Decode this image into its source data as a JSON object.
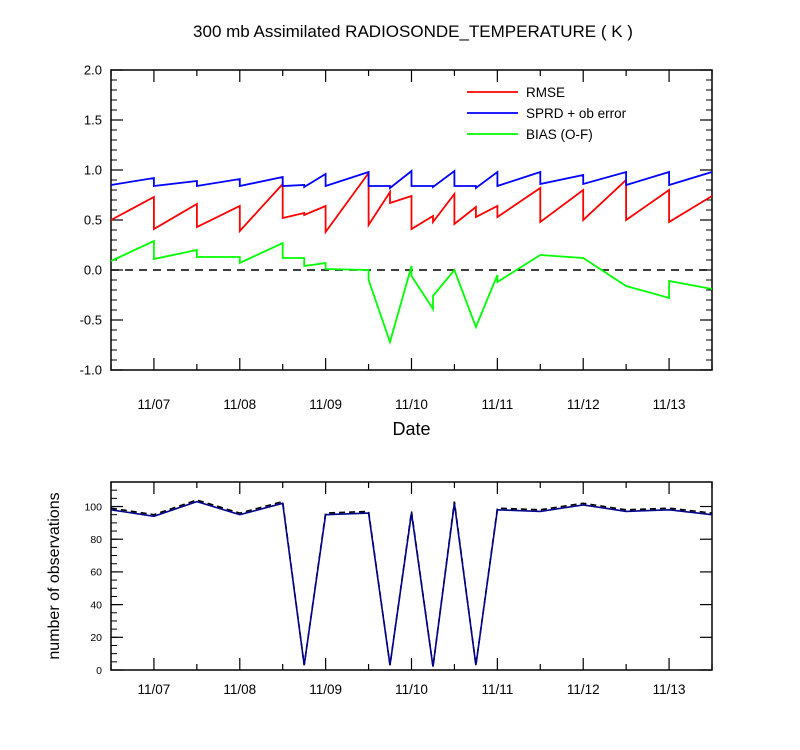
{
  "title": "300 mb Assimilated RADIOSONDE_TEMPERATURE ( K )",
  "chart_data": [
    {
      "type": "line",
      "xlabel": "Date",
      "ylabel": "",
      "ylim": [
        -1.0,
        2.0
      ],
      "xlim": [
        "11/06 12Z",
        "11/13 12Z"
      ],
      "yticks": [
        "-1.0",
        "-0.5",
        "0.0",
        "0.5",
        "1.0",
        "1.5",
        "2.0"
      ],
      "xticks": [
        "11/07",
        "11/08",
        "11/09",
        "11/10",
        "11/11",
        "11/12",
        "11/13"
      ],
      "zero_line": "dashed",
      "legend_position": "top-right",
      "series": [
        {
          "name": "RMSE",
          "color": "#ff0000",
          "points": [
            [
              "11/06 12Z",
              0.5
            ],
            [
              "11/07 00Z",
              0.73
            ],
            [
              "11/07 00Z",
              0.41
            ],
            [
              "11/07 12Z",
              0.66
            ],
            [
              "11/07 12Z",
              0.43
            ],
            [
              "11/08 00Z",
              0.64
            ],
            [
              "11/08 00Z",
              0.39
            ],
            [
              "11/08 12Z",
              0.86
            ],
            [
              "11/08 12Z",
              0.52
            ],
            [
              "11/08 18Z",
              0.57
            ],
            [
              "11/08 18Z",
              0.55
            ],
            [
              "11/09 00Z",
              0.64
            ],
            [
              "11/09 00Z",
              0.38
            ],
            [
              "11/09 12Z",
              0.97
            ],
            [
              "11/09 12Z",
              0.45
            ],
            [
              "11/09 18Z",
              0.78
            ],
            [
              "11/09 18Z",
              0.67
            ],
            [
              "11/10 00Z",
              0.74
            ],
            [
              "11/10 00Z",
              0.41
            ],
            [
              "11/10 06Z",
              0.54
            ],
            [
              "11/10 06Z",
              0.48
            ],
            [
              "11/10 12Z",
              0.76
            ],
            [
              "11/10 12Z",
              0.46
            ],
            [
              "11/10 18Z",
              0.63
            ],
            [
              "11/10 18Z",
              0.53
            ],
            [
              "11/11 00Z",
              0.64
            ],
            [
              "11/11 00Z",
              0.53
            ],
            [
              "11/11 12Z",
              0.82
            ],
            [
              "11/11 12Z",
              0.48
            ],
            [
              "11/12 00Z",
              0.8
            ],
            [
              "11/12 00Z",
              0.5
            ],
            [
              "11/12 12Z",
              0.9
            ],
            [
              "11/12 12Z",
              0.5
            ],
            [
              "11/13 00Z",
              0.8
            ],
            [
              "11/13 00Z",
              0.48
            ],
            [
              "11/13 12Z",
              0.74
            ]
          ]
        },
        {
          "name": "SPRD + ob error",
          "color": "#0000ff",
          "points": [
            [
              "11/06 12Z",
              0.85
            ],
            [
              "11/07 00Z",
              0.92
            ],
            [
              "11/07 00Z",
              0.84
            ],
            [
              "11/07 12Z",
              0.89
            ],
            [
              "11/07 12Z",
              0.84
            ],
            [
              "11/08 00Z",
              0.91
            ],
            [
              "11/08 00Z",
              0.84
            ],
            [
              "11/08 12Z",
              0.93
            ],
            [
              "11/08 12Z",
              0.84
            ],
            [
              "11/08 18Z",
              0.85
            ],
            [
              "11/08 18Z",
              0.83
            ],
            [
              "11/09 00Z",
              0.96
            ],
            [
              "11/09 00Z",
              0.84
            ],
            [
              "11/09 12Z",
              0.98
            ],
            [
              "11/09 12Z",
              0.84
            ],
            [
              "11/09 18Z",
              0.84
            ],
            [
              "11/09 18Z",
              0.82
            ],
            [
              "11/10 00Z",
              0.99
            ],
            [
              "11/10 00Z",
              0.84
            ],
            [
              "11/10 06Z",
              0.84
            ],
            [
              "11/10 06Z",
              0.83
            ],
            [
              "11/10 12Z",
              0.99
            ],
            [
              "11/10 12Z",
              0.84
            ],
            [
              "11/10 18Z",
              0.84
            ],
            [
              "11/10 18Z",
              0.82
            ],
            [
              "11/11 00Z",
              0.98
            ],
            [
              "11/11 00Z",
              0.84
            ],
            [
              "11/11 12Z",
              0.98
            ],
            [
              "11/11 12Z",
              0.86
            ],
            [
              "11/12 00Z",
              0.95
            ],
            [
              "11/12 00Z",
              0.86
            ],
            [
              "11/12 12Z",
              0.98
            ],
            [
              "11/12 12Z",
              0.85
            ],
            [
              "11/13 00Z",
              0.98
            ],
            [
              "11/13 00Z",
              0.85
            ],
            [
              "11/13 12Z",
              0.98
            ]
          ]
        },
        {
          "name": "BIAS (O-F)",
          "color": "#00ff00",
          "points": [
            [
              "11/06 12Z",
              0.09
            ],
            [
              "11/07 00Z",
              0.29
            ],
            [
              "11/07 00Z",
              0.11
            ],
            [
              "11/07 12Z",
              0.2
            ],
            [
              "11/07 12Z",
              0.13
            ],
            [
              "11/08 00Z",
              0.13
            ],
            [
              "11/08 00Z",
              0.07
            ],
            [
              "11/08 12Z",
              0.27
            ],
            [
              "11/08 12Z",
              0.12
            ],
            [
              "11/08 18Z",
              0.12
            ],
            [
              "11/08 18Z",
              0.04
            ],
            [
              "11/09 00Z",
              0.07
            ],
            [
              "11/09 00Z",
              0.01
            ],
            [
              "11/09 12Z",
              0.0
            ],
            [
              "11/09 12Z",
              -0.1
            ],
            [
              "11/09 18Z",
              -0.72
            ],
            [
              "11/10 00Z",
              0.04
            ],
            [
              "11/10 00Z",
              -0.06
            ],
            [
              "11/10 06Z",
              -0.39
            ],
            [
              "11/10 06Z",
              -0.26
            ],
            [
              "11/10 12Z",
              0.0
            ],
            [
              "11/10 18Z",
              -0.57
            ],
            [
              "11/11 00Z",
              -0.05
            ],
            [
              "11/11 00Z",
              -0.12
            ],
            [
              "11/11 12Z",
              0.15
            ],
            [
              "11/12 00Z",
              0.12
            ],
            [
              "11/12 12Z",
              -0.16
            ],
            [
              "11/13 00Z",
              -0.28
            ],
            [
              "11/13 00Z",
              -0.11
            ],
            [
              "11/13 12Z",
              -0.19
            ]
          ]
        }
      ]
    },
    {
      "type": "line",
      "xlabel": "",
      "ylabel": "number of observations",
      "ylim": [
        0,
        115
      ],
      "xlim": [
        "11/06 12Z",
        "11/13 12Z"
      ],
      "yticks": [
        "0",
        "20",
        "40",
        "60",
        "80",
        "100"
      ],
      "xticks": [
        "11/07",
        "11/08",
        "11/09",
        "11/10",
        "11/11",
        "11/12",
        "11/13"
      ],
      "series": [
        {
          "style": "dashed",
          "color": "#000000",
          "points": [
            [
              "11/06 12Z",
              99
            ],
            [
              "11/07 00Z",
              95
            ],
            [
              "11/07 12Z",
              104
            ],
            [
              "11/08 00Z",
              96
            ],
            [
              "11/08 12Z",
              103
            ],
            [
              "11/08 18Z",
              3
            ],
            [
              "11/09 00Z",
              96
            ],
            [
              "11/09 12Z",
              97
            ],
            [
              "11/09 18Z",
              3
            ],
            [
              "11/10 00Z",
              97
            ],
            [
              "11/10 06Z",
              2
            ],
            [
              "11/10 12Z",
              103
            ],
            [
              "11/10 18Z",
              3
            ],
            [
              "11/11 00Z",
              99
            ],
            [
              "11/11 12Z",
              98
            ],
            [
              "11/12 00Z",
              102
            ],
            [
              "11/12 12Z",
              98
            ],
            [
              "11/13 00Z",
              99
            ],
            [
              "11/13 12Z",
              96
            ]
          ]
        },
        {
          "style": "solid",
          "color": "#00008b",
          "points": [
            [
              "11/06 12Z",
              98
            ],
            [
              "11/07 00Z",
              94
            ],
            [
              "11/07 12Z",
              103
            ],
            [
              "11/08 00Z",
              95
            ],
            [
              "11/08 12Z",
              102
            ],
            [
              "11/08 18Z",
              3
            ],
            [
              "11/09 00Z",
              95
            ],
            [
              "11/09 12Z",
              96
            ],
            [
              "11/09 18Z",
              3
            ],
            [
              "11/10 00Z",
              96
            ],
            [
              "11/10 06Z",
              2
            ],
            [
              "11/10 12Z",
              102
            ],
            [
              "11/10 18Z",
              3
            ],
            [
              "11/11 00Z",
              98
            ],
            [
              "11/11 12Z",
              97
            ],
            [
              "11/12 00Z",
              101
            ],
            [
              "11/12 12Z",
              97
            ],
            [
              "11/13 00Z",
              98
            ],
            [
              "11/13 12Z",
              95
            ]
          ]
        }
      ]
    }
  ]
}
